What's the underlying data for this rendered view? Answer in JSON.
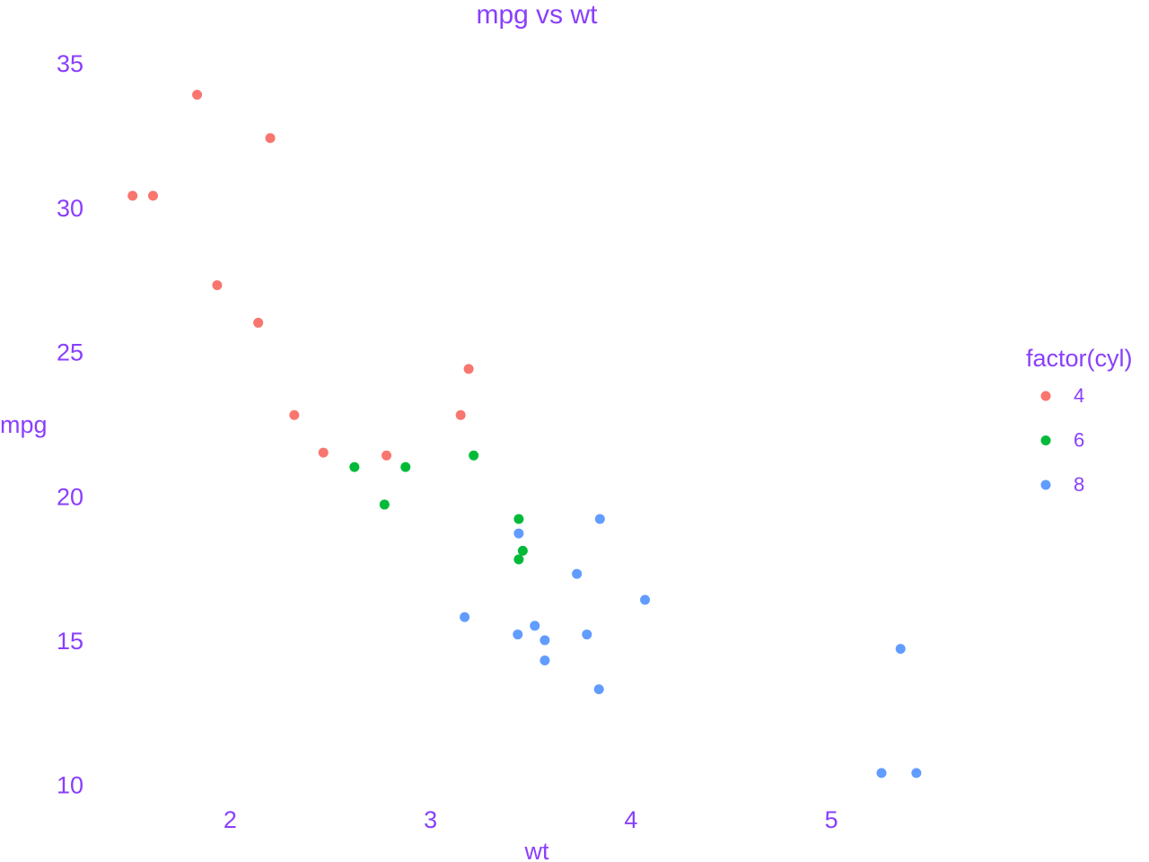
{
  "chart_data": {
    "type": "scatter",
    "title": "mpg vs wt",
    "xlabel": "wt",
    "ylabel": "mpg",
    "xlim": [
      1.38,
      5.68
    ],
    "ylim": [
      9.4,
      36
    ],
    "x_ticks": [
      2,
      3,
      4,
      5
    ],
    "y_ticks": [
      10,
      15,
      20,
      25,
      30,
      35
    ],
    "grid": false,
    "legend": {
      "title": "factor(cyl)",
      "position": "right"
    },
    "text_color": "#8A3FFC",
    "series": [
      {
        "name": "4",
        "color": "#F8766D",
        "points": [
          [
            2.32,
            22.8
          ],
          [
            3.19,
            24.4
          ],
          [
            3.15,
            22.8
          ],
          [
            2.2,
            32.4
          ],
          [
            1.615,
            30.4
          ],
          [
            1.835,
            33.9
          ],
          [
            2.465,
            21.5
          ],
          [
            1.935,
            27.3
          ],
          [
            2.14,
            26.0
          ],
          [
            1.513,
            30.4
          ],
          [
            2.78,
            21.4
          ]
        ]
      },
      {
        "name": "6",
        "color": "#00BA38",
        "points": [
          [
            2.62,
            21.0
          ],
          [
            2.875,
            21.0
          ],
          [
            3.215,
            21.4
          ],
          [
            3.46,
            18.1
          ],
          [
            3.44,
            19.2
          ],
          [
            3.44,
            17.8
          ],
          [
            2.77,
            19.7
          ]
        ]
      },
      {
        "name": "8",
        "color": "#619CFF",
        "points": [
          [
            3.44,
            18.7
          ],
          [
            3.57,
            14.3
          ],
          [
            4.07,
            16.4
          ],
          [
            3.73,
            17.3
          ],
          [
            3.78,
            15.2
          ],
          [
            5.25,
            10.4
          ],
          [
            5.424,
            10.4
          ],
          [
            5.345,
            14.7
          ],
          [
            3.52,
            15.5
          ],
          [
            3.435,
            15.2
          ],
          [
            3.84,
            13.3
          ],
          [
            3.845,
            19.2
          ],
          [
            3.17,
            15.8
          ],
          [
            3.57,
            15.0
          ]
        ]
      }
    ]
  }
}
